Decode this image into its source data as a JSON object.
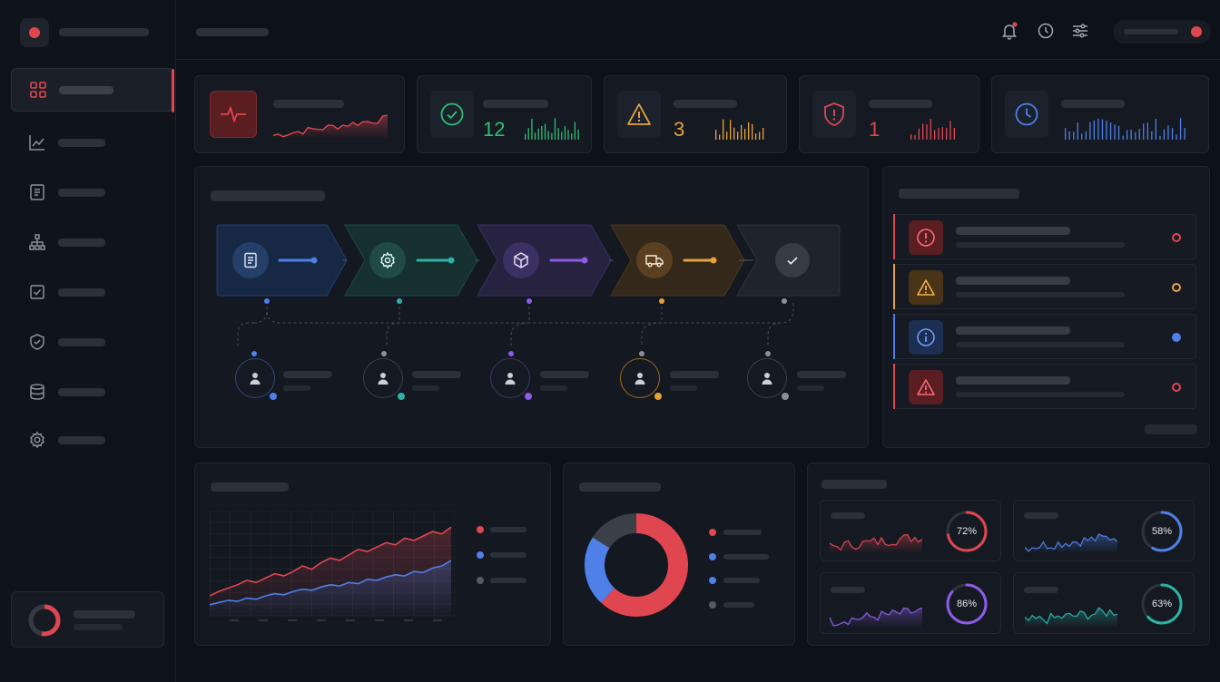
{
  "kpis": [
    {
      "value": "",
      "color": "#e0464f",
      "icon": "heartbeat-icon"
    },
    {
      "value": "12",
      "color": "#2fbf71",
      "icon": "check-circle-icon"
    },
    {
      "value": "3",
      "color": "#e8a23a",
      "icon": "warning-triangle-icon"
    },
    {
      "value": "1",
      "color": "#e0464f",
      "icon": "shield-alert-icon"
    },
    {
      "value": "",
      "color": "#4f7fe8",
      "icon": "clock-icon"
    }
  ],
  "workflow": {
    "stages": [
      {
        "icon": "document-icon",
        "color": "#4f7fe8"
      },
      {
        "icon": "gear-icon",
        "color": "#2ab3a6"
      },
      {
        "icon": "box-icon",
        "color": "#8c5ce6"
      },
      {
        "icon": "truck-icon",
        "color": "#e8a23a"
      },
      {
        "icon": "check-icon",
        "color": "#9aa0aa"
      }
    ]
  },
  "alerts": [
    {
      "icon": "alert-circle-icon",
      "color": "#e0464f"
    },
    {
      "icon": "warning-triangle-icon",
      "color": "#e8a23a"
    },
    {
      "icon": "info-circle-icon",
      "color": "#4f7fe8"
    },
    {
      "icon": "warning-triangle-icon",
      "color": "#e0464f"
    }
  ],
  "gauges": [
    {
      "label": "72%",
      "value": 0.72,
      "color": "#e0464f"
    },
    {
      "label": "58%",
      "value": 0.58,
      "color": "#4f7fe8"
    },
    {
      "label": "86%",
      "value": 0.86,
      "color": "#8c5ce6"
    },
    {
      "label": "63%",
      "value": 0.63,
      "color": "#2ab3a6"
    }
  ],
  "chart_data": [
    {
      "type": "area",
      "series": [
        {
          "color": "#e0464f",
          "values": [
            18,
            22,
            25,
            28,
            32,
            30,
            34,
            38,
            36,
            40,
            45,
            42,
            48,
            52,
            50,
            55,
            60,
            58,
            62,
            66,
            64,
            70,
            68,
            72,
            76,
            74,
            80
          ]
        },
        {
          "color": "#4f7fe8",
          "values": [
            10,
            12,
            14,
            13,
            16,
            15,
            18,
            20,
            19,
            22,
            24,
            23,
            26,
            28,
            27,
            30,
            29,
            33,
            32,
            35,
            37,
            36,
            40,
            39,
            43,
            45,
            50
          ]
        }
      ],
      "grid": true
    },
    {
      "type": "pie",
      "slices": [
        {
          "value": 62,
          "color": "#e0464f"
        },
        {
          "value": 22,
          "color": "#4f7fe8"
        },
        {
          "value": 16,
          "color": "#3a3f48"
        }
      ]
    }
  ],
  "colors": {
    "accent": "#e0464f",
    "blue": "#4f7fe8",
    "amber": "#e8a23a",
    "green": "#2fbf71",
    "teal": "#2ab3a6",
    "purple": "#8c5ce6"
  }
}
